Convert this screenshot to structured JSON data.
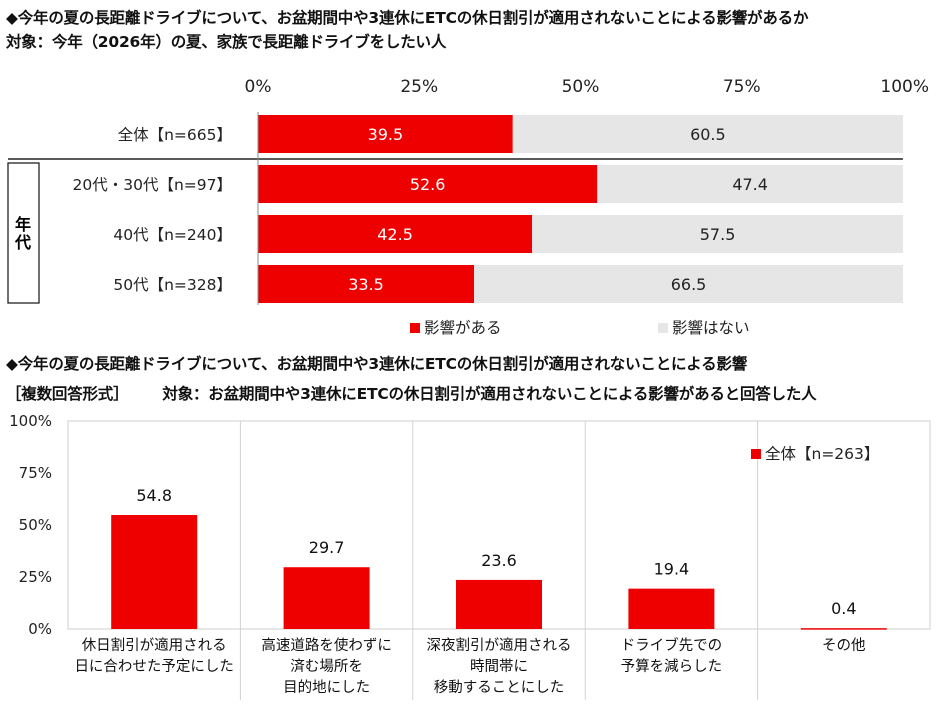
{
  "chart1_title": "◆今年の夏の長距離ドライブについて、お盆期間中や3連休にETCの休日割引が適用されないことによる影響があるか",
  "chart1_subtitle": "対象：今年（2026年）の夏、家族で長距離ドライブをしたい人",
  "chart2_title": "◆今年の夏の長距離ドライブについて、お盆期間中や3連休にETCの休日割引が適用されないことによる影響",
  "chart2_format": "［複数回答形式］",
  "chart2_subtitle": "対象：お盆期間中や3連休にETCの休日割引が適用されないことによる影響があると回答した人",
  "colors": {
    "red": "#ee0000",
    "gray": "#e6e6e6"
  },
  "chart_data": [
    {
      "type": "bar",
      "orientation": "horizontal-stacked-100",
      "x_ticks": [
        "0%",
        "25%",
        "50%",
        "75%",
        "100%"
      ],
      "xlim": [
        0,
        100
      ],
      "group_label": "年代",
      "categories": [
        "全体【n=665】",
        "20代・30代【n=97】",
        "40代【n=240】",
        "50代【n=328】"
      ],
      "series": [
        {
          "name": "影響がある",
          "values": [
            39.5,
            52.6,
            42.5,
            33.5
          ]
        },
        {
          "name": "影響はない",
          "values": [
            60.5,
            47.4,
            57.5,
            66.5
          ]
        }
      ],
      "legend_position": "bottom"
    },
    {
      "type": "bar",
      "orientation": "vertical",
      "y_ticks": [
        "100%",
        "75%",
        "50%",
        "25%",
        "0%"
      ],
      "ylim": [
        0,
        100
      ],
      "categories": [
        [
          "休日割引が適用される",
          "日に合わせた予定にした"
        ],
        [
          "高速道路を使わずに",
          "済む場所を",
          "目的地にした"
        ],
        [
          "深夜割引が適用される",
          "時間帯に",
          "移動することにした"
        ],
        [
          "ドライブ先での",
          "予算を減らした"
        ],
        [
          "その他"
        ]
      ],
      "series": [
        {
          "name": "全体【n=263】",
          "values": [
            54.8,
            29.7,
            23.6,
            19.4,
            0.4
          ]
        }
      ],
      "legend_position": "top-right"
    }
  ]
}
